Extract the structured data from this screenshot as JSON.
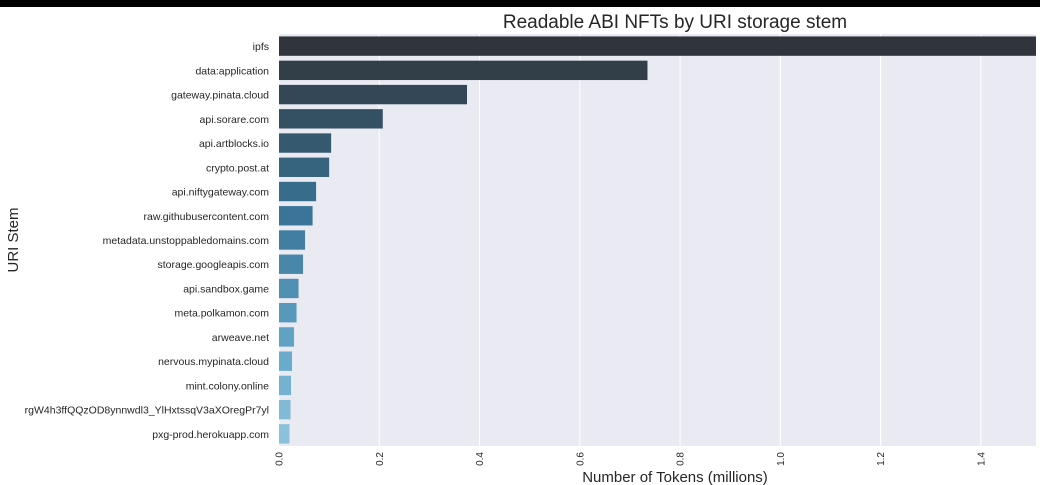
{
  "chart_data": {
    "type": "bar",
    "orientation": "horizontal",
    "title": "Readable ABI NFTs by URI storage stem",
    "xlabel": "Number of Tokens (millions)",
    "ylabel": "URI Stem",
    "xlim": [
      0,
      1.51
    ],
    "xticks": [
      "0.0",
      "0.2",
      "0.4",
      "0.6",
      "0.8",
      "1.0",
      "1.2",
      "1.4"
    ],
    "grid": true,
    "categories": [
      "ipfs",
      "data:application",
      "gateway.pinata.cloud",
      "api.sorare.com",
      "api.artblocks.io",
      "crypto.post.at",
      "api.niftygateway.com",
      "raw.githubusercontent.com",
      "metadata.unstoppabledomains.com",
      "storage.googleapis.com",
      "api.sandbox.game",
      "meta.polkamon.com",
      "arweave.net",
      "nervous.mypinata.cloud",
      "mint.colony.online",
      "rgW4h3ffQQzOD8ynnwdl3_YlHxtssqV3aXOregPr7yl",
      "pxg-prod.herokuapp.com"
    ],
    "values": [
      1.51,
      0.735,
      0.375,
      0.207,
      0.104,
      0.1,
      0.074,
      0.067,
      0.052,
      0.048,
      0.039,
      0.035,
      0.03,
      0.026,
      0.024,
      0.023,
      0.021
    ],
    "colors": [
      "#2f353b",
      "#323e48",
      "#334756",
      "#345063",
      "#355a70",
      "#36637d",
      "#376c8b",
      "#3a7599",
      "#417ea2",
      "#4887aa",
      "#5090b3",
      "#5899bb",
      "#60a2c3",
      "#6aaacb",
      "#75b2d1",
      "#80bad6",
      "#8bc1db"
    ],
    "background": "#eaeaf2"
  }
}
